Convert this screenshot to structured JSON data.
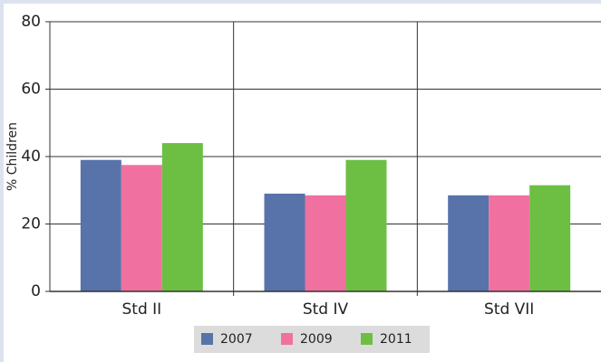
{
  "chart_data": {
    "type": "bar",
    "y_label": "% Children",
    "categories": [
      "Std II",
      "Std IV",
      "Std VII"
    ],
    "series": [
      {
        "name": "2007",
        "color": "#5873a9",
        "values": [
          39,
          29,
          28.5
        ]
      },
      {
        "name": "2009",
        "color": "#f0719f",
        "values": [
          37.5,
          28.5,
          28.5
        ]
      },
      {
        "name": "2011",
        "color": "#6dbf44",
        "values": [
          44,
          39,
          31.5
        ]
      }
    ],
    "ylim": [
      0,
      80
    ],
    "yticks": [
      0,
      20,
      40,
      60,
      80
    ],
    "grid": true
  }
}
